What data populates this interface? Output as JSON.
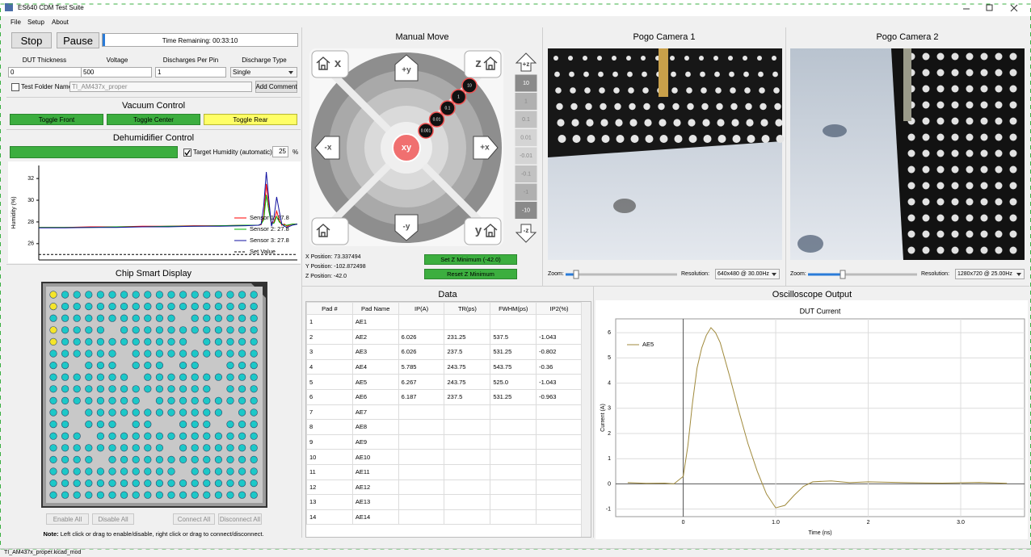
{
  "window": {
    "title": "ES640 CDM Test Suite"
  },
  "menu": [
    "File",
    "Setup",
    "About"
  ],
  "controls": {
    "stop": "Stop",
    "pause": "Pause",
    "time_remaining": "Time Remaining: 00:33:10",
    "fields": [
      {
        "label": "DUT Thickness",
        "value": "0"
      },
      {
        "label": "Voltage",
        "value": "500"
      },
      {
        "label": "Discharges Per Pin",
        "value": "1"
      },
      {
        "label": "Discharge Type",
        "value": "Single"
      }
    ],
    "test_folder_label": "Test Folder Name",
    "test_folder_value": "TI_AM437x_proper",
    "add_comment": "Add Comment"
  },
  "vacuum": {
    "title": "Vacuum Control",
    "buttons": [
      "Toggle Front",
      "Toggle Center",
      "Toggle Rear"
    ]
  },
  "dehumidifier": {
    "title": "Dehumidifier Control",
    "target_label": "Target Humidity (automatic):",
    "target_value": "25",
    "unit": "%"
  },
  "humidity_chart": {
    "type": "line",
    "y_label": "Humidity (%)",
    "xlim": [
      0,
      100
    ],
    "ylim": [
      24.5,
      33.2
    ],
    "yticks": [
      26,
      28,
      30,
      32
    ],
    "grid": false,
    "legend": "lower right",
    "x": [
      0,
      10,
      20,
      30,
      40,
      50,
      60,
      70,
      80,
      85,
      86,
      87,
      88,
      89,
      90,
      91,
      92,
      93,
      94,
      95,
      96,
      98,
      100
    ],
    "series": [
      {
        "name": "Sensor 1: 27.8",
        "color": "#ff0000",
        "values": [
          27.5,
          27.5,
          27.55,
          27.55,
          27.6,
          27.6,
          27.65,
          27.65,
          27.7,
          27.7,
          27.75,
          28.5,
          31.5,
          29.5,
          27.9,
          28.0,
          29.0,
          28.2,
          27.7,
          27.8,
          27.6,
          27.8,
          27.8
        ]
      },
      {
        "name": "Sensor 2: 27.8",
        "color": "#00b000",
        "values": [
          27.5,
          27.5,
          27.5,
          27.55,
          27.55,
          27.6,
          27.6,
          27.65,
          27.7,
          27.7,
          27.8,
          28.2,
          30.5,
          29.0,
          27.8,
          27.9,
          28.5,
          28.0,
          27.8,
          27.7,
          27.7,
          27.8,
          27.8
        ]
      },
      {
        "name": "Sensor 3: 27.8",
        "color": "#1010a0",
        "values": [
          27.45,
          27.45,
          27.5,
          27.5,
          27.55,
          27.55,
          27.6,
          27.6,
          27.65,
          27.7,
          27.8,
          29.5,
          32.6,
          30.0,
          27.6,
          28.5,
          30.3,
          29.0,
          27.8,
          27.6,
          27.5,
          27.7,
          27.8
        ]
      }
    ],
    "reference": {
      "name": "Set Value",
      "value": 25,
      "color": "#000000"
    }
  },
  "chip_display": {
    "title": "Chip Smart Display",
    "buttons": [
      "Enable All",
      "Disable All",
      "Connect All",
      "Disconnect All"
    ],
    "note_bold": "Note:",
    "note": " Left click or drag to enable/disable, right click or drag to connect/disconnect."
  },
  "manual_move": {
    "title": "Manual Move",
    "labels": {
      "x": "x",
      "z": "z",
      "y": "y",
      "plus_y": "+y",
      "minus_y": "-y",
      "minus_x": "-x",
      "plus_x": "+x",
      "xy": "xy"
    },
    "steps": [
      "0.001",
      "0.01",
      "0.1",
      "1",
      "10"
    ],
    "z_plus": "+z",
    "z_minus": "-z",
    "z_steps": [
      "10",
      "1",
      "0.1",
      "0.01",
      "-0.01",
      "-0.1",
      "-1",
      "-10"
    ],
    "positions": [
      "X Position: 73.337494",
      "Y Position: -102.872498",
      "Z Position: -42.0"
    ],
    "buttons": [
      "Set Z Minimum (-42.0)",
      "Reset Z Minimum"
    ]
  },
  "cameras": [
    {
      "title": "Pogo Camera 1",
      "zoom_label": "Zoom:",
      "resolution_label": "Resolution:",
      "resolution": "640x480 @ 30.00Hz"
    },
    {
      "title": "Pogo Camera 2",
      "zoom_label": "Zoom:",
      "resolution_label": "Resolution:",
      "resolution": "1280x720 @ 25.00Hz"
    }
  ],
  "data_table": {
    "title": "Data",
    "columns": [
      "Pad #",
      "Pad Name",
      "IP(A)",
      "TR(ps)",
      "FWHM(ps)",
      "IP2(%)"
    ],
    "rows": [
      {
        "pad": "1",
        "name": "AE1"
      },
      {
        "pad": "2",
        "name": "AE2",
        "ip": "6.026",
        "tr": "231.25",
        "fwhm": "537.5",
        "ip2": "-1.043"
      },
      {
        "pad": "3",
        "name": "AE3",
        "ip": "6.026",
        "tr": "237.5",
        "fwhm": "531.25",
        "ip2": "-0.802"
      },
      {
        "pad": "4",
        "name": "AE4",
        "ip": "5.785",
        "tr": "243.75",
        "fwhm": "543.75",
        "ip2": "-0.36"
      },
      {
        "pad": "5",
        "name": "AE5",
        "ip": "6.267",
        "tr": "243.75",
        "fwhm": "525.0",
        "ip2": "-1.043"
      },
      {
        "pad": "6",
        "name": "AE6",
        "ip": "6.187",
        "tr": "237.5",
        "fwhm": "531.25",
        "ip2": "-0.963"
      },
      {
        "pad": "7",
        "name": "AE7"
      },
      {
        "pad": "8",
        "name": "AE8"
      },
      {
        "pad": "9",
        "name": "AE9"
      },
      {
        "pad": "10",
        "name": "AE10"
      },
      {
        "pad": "11",
        "name": "AE11"
      },
      {
        "pad": "12",
        "name": "AE12"
      },
      {
        "pad": "13",
        "name": "AE13"
      },
      {
        "pad": "14",
        "name": "AE14"
      }
    ]
  },
  "oscilloscope": {
    "title": "Oscilloscope Output",
    "chart": {
      "type": "line",
      "title": "DUT Current",
      "x_label": "Time (ns)",
      "y_label": "Current (A)",
      "xlim": [
        -0.73,
        3.69
      ],
      "ylim": [
        -1.3,
        6.55
      ],
      "xticks": [
        0,
        {
          "value": 1,
          "label": "1.0"
        },
        2,
        {
          "value": 3,
          "label": "3.0"
        }
      ],
      "yticks": [
        -1,
        0,
        1,
        2,
        3,
        4,
        5,
        6
      ],
      "grid": true,
      "legend": "upper left",
      "series": [
        {
          "name": "AE5",
          "color": "#a08a3c",
          "x": [
            -0.6,
            -0.4,
            -0.2,
            -0.1,
            0,
            0.05,
            0.1,
            0.15,
            0.2,
            0.25,
            0.3,
            0.35,
            0.4,
            0.5,
            0.6,
            0.7,
            0.8,
            0.9,
            1.0,
            1.1,
            1.2,
            1.3,
            1.4,
            1.6,
            1.8,
            2.0,
            2.4,
            2.8,
            3.2,
            3.5
          ],
          "values": [
            0.05,
            0.02,
            0.03,
            0.0,
            0.3,
            1.5,
            3.2,
            4.6,
            5.4,
            5.9,
            6.2,
            6.0,
            5.6,
            4.3,
            2.9,
            1.6,
            0.5,
            -0.4,
            -0.95,
            -0.85,
            -0.45,
            -0.1,
            0.08,
            0.12,
            0.05,
            0.08,
            0.05,
            0.03,
            0.06,
            0.02
          ]
        }
      ]
    }
  },
  "status": "TI_AM437x_proper.kicad_mod"
}
